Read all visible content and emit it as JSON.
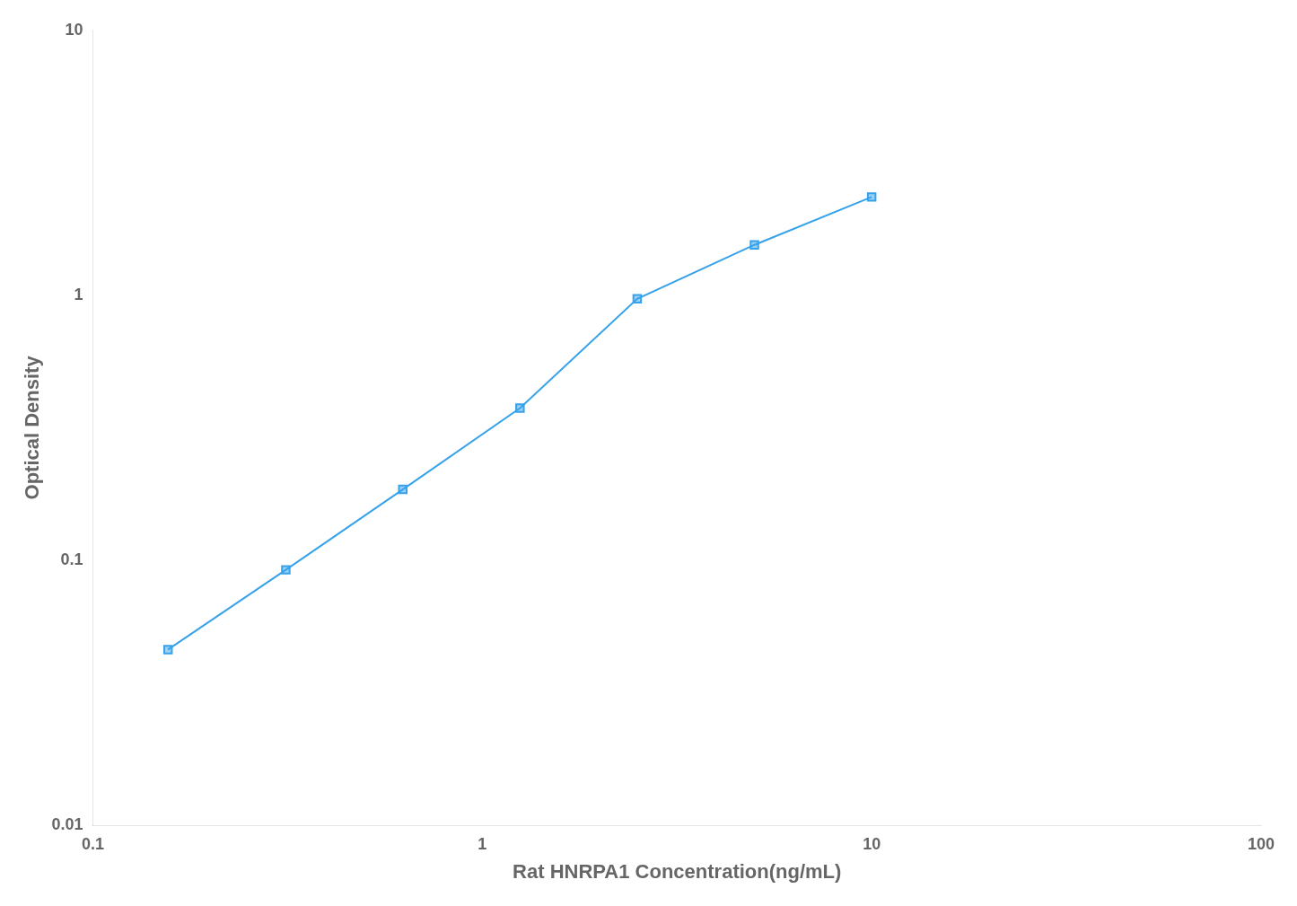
{
  "chart_data": {
    "type": "line",
    "x": [
      0.156,
      0.313,
      0.625,
      1.25,
      2.5,
      5.0,
      10.0
    ],
    "values": [
      0.046,
      0.092,
      0.185,
      0.375,
      0.97,
      1.55,
      2.35
    ],
    "xlabel": "Rat HNRPA1 Concentration(ng/mL)",
    "ylabel": "Optical Density",
    "xlim": [
      0.1,
      100
    ],
    "ylim": [
      0.01,
      10
    ],
    "xticks": [
      0.1,
      1,
      10,
      100
    ],
    "yticks": [
      0.01,
      0.1,
      1,
      10
    ],
    "log": true,
    "grid": false,
    "marker": "square"
  }
}
